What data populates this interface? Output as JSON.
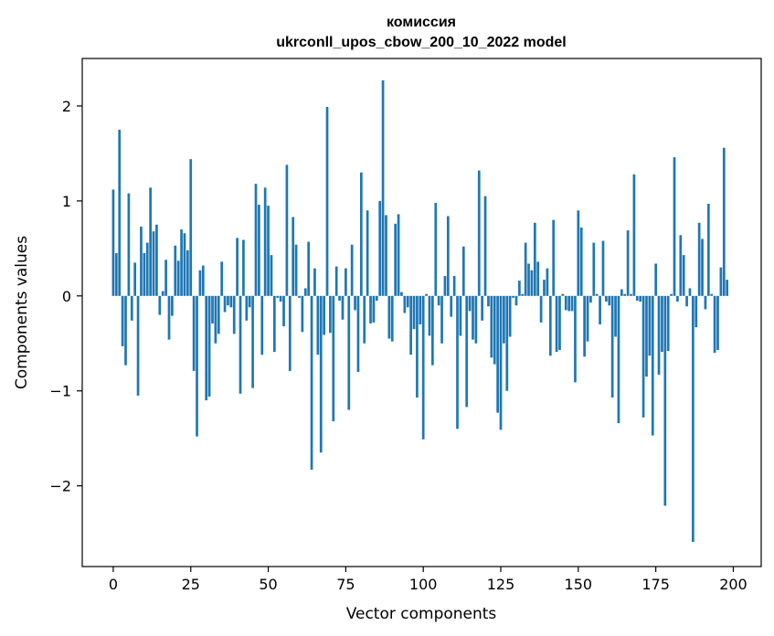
{
  "chart_data": {
    "type": "bar",
    "title_line1": "комиссия",
    "title_line2": "ukrconll_upos_cbow_200_10_2022 model",
    "xlabel": "Vector components",
    "ylabel": "Components values",
    "xlim": [
      -10,
      209
    ],
    "ylim": [
      -2.85,
      2.5
    ],
    "xticks": [
      0,
      25,
      50,
      75,
      100,
      125,
      150,
      175,
      200
    ],
    "xtick_labels": [
      "0",
      "25",
      "50",
      "75",
      "100",
      "125",
      "150",
      "175",
      "200"
    ],
    "yticks": [
      -2,
      -1,
      0,
      1,
      2
    ],
    "ytick_labels": [
      "−2",
      "−1",
      "0",
      "1",
      "2"
    ],
    "bar_color": "#1f77b4",
    "grid": false,
    "values": [
      1.12,
      0.45,
      1.75,
      -0.53,
      -0.73,
      1.08,
      -0.26,
      0.35,
      -1.05,
      0.73,
      0.45,
      0.56,
      1.14,
      0.68,
      0.75,
      -0.2,
      0.05,
      0.38,
      -0.46,
      -0.21,
      0.53,
      0.37,
      0.7,
      0.66,
      0.48,
      1.44,
      -0.79,
      -1.48,
      0.27,
      0.32,
      -1.1,
      -1.06,
      -0.29,
      -0.5,
      -0.4,
      0.36,
      -0.17,
      -0.1,
      -0.12,
      -0.4,
      0.61,
      -1.03,
      0.59,
      -0.26,
      -0.12,
      -0.97,
      1.18,
      0.96,
      -0.62,
      1.14,
      0.95,
      0.43,
      -0.59,
      -0.02,
      -0.06,
      -0.32,
      1.38,
      -0.79,
      0.83,
      0.54,
      -0.02,
      -0.38,
      0.08,
      0.57,
      -1.83,
      0.29,
      -0.62,
      -1.65,
      -0.41,
      1.99,
      -0.39,
      -1.32,
      0.31,
      -0.05,
      -0.25,
      0.29,
      -1.2,
      0.54,
      -0.15,
      -0.8,
      1.3,
      -0.5,
      0.9,
      -0.29,
      -0.28,
      -0.05,
      1.0,
      2.27,
      0.85,
      -0.45,
      -0.48,
      0.76,
      0.86,
      0.04,
      -0.18,
      -0.12,
      -0.62,
      -0.35,
      -1.07,
      -0.3,
      -1.51,
      0.02,
      -0.42,
      -0.73,
      0.98,
      -0.1,
      -0.5,
      0.21,
      0.84,
      -0.22,
      0.21,
      -1.4,
      -0.42,
      0.52,
      -1.17,
      -0.16,
      -0.46,
      -0.5,
      1.32,
      -0.26,
      1.05,
      -0.11,
      -0.65,
      -0.72,
      -1.23,
      -1.41,
      -0.5,
      -1.0,
      -0.43,
      -0.02,
      -0.1,
      0.16,
      0.02,
      0.56,
      0.34,
      0.27,
      0.77,
      0.36,
      -0.28,
      0.17,
      0.29,
      -0.63,
      0.8,
      -0.59,
      -0.57,
      0.02,
      -0.15,
      -0.16,
      -0.16,
      -0.91,
      0.9,
      0.72,
      -0.64,
      -0.48,
      -0.07,
      0.56,
      0.02,
      -0.3,
      0.58,
      -0.06,
      -0.1,
      -1.07,
      -0.43,
      -1.34,
      0.07,
      0.02,
      0.69,
      0.02,
      1.28,
      -0.05,
      -0.06,
      -1.28,
      -0.85,
      -0.63,
      -1.47,
      0.34,
      -0.83,
      -0.59,
      -2.21,
      -0.58,
      0.02,
      1.46,
      -0.06,
      0.64,
      0.43,
      -0.11,
      0.08,
      -2.59,
      -0.33,
      0.77,
      0.6,
      -0.14,
      0.97,
      0.02,
      -0.6,
      -0.57,
      0.3,
      1.56,
      0.17
    ]
  }
}
